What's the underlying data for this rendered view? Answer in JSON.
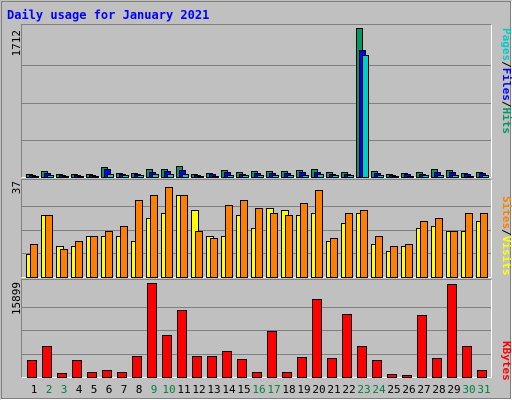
{
  "title": "Daily usage for January 2021",
  "colors": {
    "background": "#c0c0c0",
    "title": "#0000ff",
    "pages": "#00cccc",
    "files": "#0000ff",
    "hits": "#009966",
    "sites": "#ff8000",
    "visits": "#ffff00",
    "kbytes": "#ff0000",
    "weekend_label": "#008040"
  },
  "labels": {
    "pages": "Pages",
    "files": "Files",
    "hits": "Hits",
    "sites": "Sites",
    "visits": "Visits",
    "kbytes": "KBytes",
    "sep": "/"
  },
  "chart_data": [
    {
      "type": "bar",
      "panel": "hits-files-pages",
      "ymax_label": "1712",
      "ylim": [
        0,
        1712
      ],
      "categories": [
        "1",
        "2",
        "3",
        "4",
        "5",
        "6",
        "7",
        "8",
        "9",
        "10",
        "11",
        "12",
        "13",
        "14",
        "15",
        "16",
        "17",
        "18",
        "19",
        "20",
        "21",
        "22",
        "23",
        "24",
        "25",
        "26",
        "27",
        "28",
        "29",
        "30",
        "31"
      ],
      "weekend_days": [
        "2",
        "3",
        "9",
        "10",
        "16",
        "17",
        "23",
        "24",
        "30",
        "31"
      ],
      "series": [
        {
          "name": "Hits",
          "values": [
            30,
            72,
            38,
            38,
            30,
            110,
            48,
            48,
            92,
            96,
            125,
            38,
            45,
            85,
            52,
            68,
            70,
            70,
            76,
            90,
            56,
            52,
            1712,
            72,
            36,
            48,
            56,
            90,
            85,
            48,
            62
          ]
        },
        {
          "name": "Files",
          "values": [
            22,
            42,
            28,
            28,
            22,
            88,
            34,
            36,
            62,
            68,
            78,
            28,
            34,
            60,
            38,
            48,
            48,
            50,
            54,
            62,
            40,
            36,
            1460,
            48,
            26,
            34,
            40,
            60,
            56,
            34,
            42
          ]
        },
        {
          "name": "Pages",
          "values": [
            10,
            20,
            14,
            14,
            10,
            40,
            18,
            18,
            30,
            30,
            36,
            14,
            16,
            28,
            18,
            22,
            22,
            24,
            26,
            30,
            18,
            18,
            1400,
            22,
            12,
            16,
            18,
            28,
            26,
            16,
            20
          ]
        }
      ]
    },
    {
      "type": "bar",
      "panel": "visits-sites",
      "ymax_label": "37",
      "ylim": [
        0,
        37
      ],
      "categories": [
        "1",
        "2",
        "3",
        "4",
        "5",
        "6",
        "7",
        "8",
        "9",
        "10",
        "11",
        "12",
        "13",
        "14",
        "15",
        "16",
        "17",
        "18",
        "19",
        "20",
        "21",
        "22",
        "23",
        "24",
        "25",
        "26",
        "27",
        "28",
        "29",
        "30",
        "31"
      ],
      "series": [
        {
          "name": "Visits",
          "values": [
            9,
            24,
            12,
            12,
            16,
            16,
            16,
            14,
            23,
            25,
            32,
            26,
            16,
            16,
            24,
            19,
            27,
            26,
            24,
            25,
            14,
            21,
            25,
            13,
            10,
            12,
            19,
            20,
            18,
            18,
            22
          ]
        },
        {
          "name": "Sites",
          "values": [
            13,
            24,
            11,
            14,
            16,
            18,
            20,
            30,
            32,
            35,
            32,
            18,
            15,
            28,
            30,
            27,
            25,
            24,
            29,
            34,
            15,
            25,
            26,
            16,
            12,
            13,
            22,
            23,
            18,
            25,
            25
          ]
        }
      ]
    },
    {
      "type": "bar",
      "panel": "kbytes",
      "ymax_label": "15899",
      "ylim": [
        0,
        15899
      ],
      "categories": [
        "1",
        "2",
        "3",
        "4",
        "5",
        "6",
        "7",
        "8",
        "9",
        "10",
        "11",
        "12",
        "13",
        "14",
        "15",
        "16",
        "17",
        "18",
        "19",
        "20",
        "21",
        "22",
        "23",
        "24",
        "25",
        "26",
        "27",
        "28",
        "29",
        "30",
        "31"
      ],
      "series": [
        {
          "name": "KBytes",
          "values": [
            2900,
            5200,
            650,
            2900,
            900,
            1100,
            800,
            3500,
            15899,
            7100,
            11300,
            3500,
            3600,
            4400,
            3000,
            850,
            7800,
            850,
            3300,
            13200,
            3200,
            10700,
            5300,
            2800,
            450,
            350,
            10500,
            3200,
            15800,
            5300,
            1100
          ]
        }
      ]
    }
  ]
}
